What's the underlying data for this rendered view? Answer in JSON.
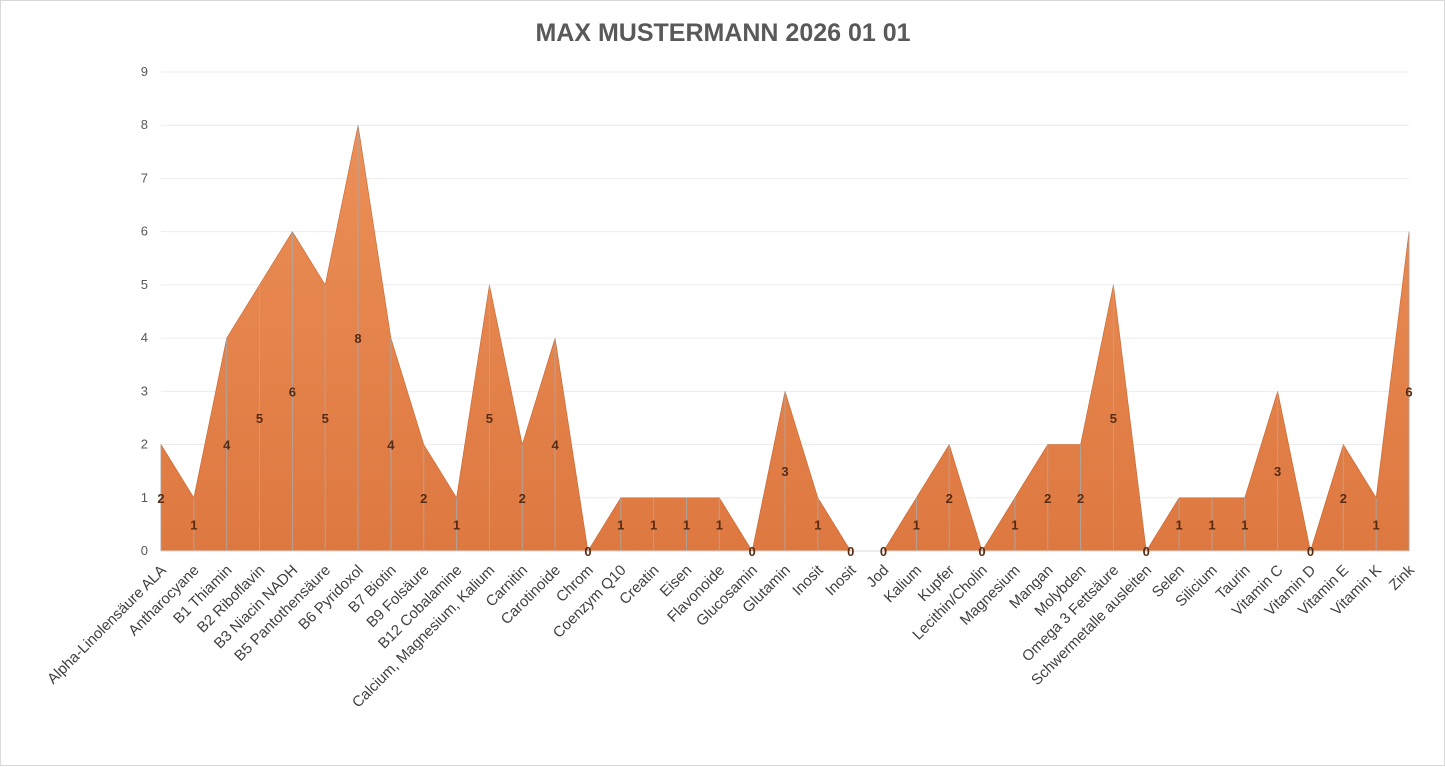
{
  "chart_data": {
    "type": "area",
    "title": "MAX MUSTERMANN 2026 01 01",
    "xlabel": "",
    "ylabel": "",
    "ylim": [
      0,
      9
    ],
    "yticks": [
      0,
      1,
      2,
      3,
      4,
      5,
      6,
      7,
      8,
      9
    ],
    "grid": true,
    "data_labels": true,
    "colors": {
      "fill": "#e07b45",
      "fill_light": "#ee9a68",
      "edge": "#c9652f",
      "label": "#5a2a10"
    },
    "categories": [
      "Alpha-Linolensäure ALA",
      "Antharocyane",
      "B1 Thiamin",
      "B2 Riboflavin",
      "B3 Niacin  NADH",
      "B5 Pantothensäure",
      "B6 Pyridoxol",
      "B7 Biotin",
      "B9 Folsäure",
      "B12 Cobalamine",
      "Calcium, Magnesium, Kalium",
      "Carnitin",
      "Carotinoide",
      "Chrom",
      "Coenzym Q10",
      "Creatin",
      "Eisen",
      "Flavonoide",
      "Glucosamin",
      "Glutamin",
      "Inosit",
      "Inosit",
      "Jod",
      "Kalium",
      "Kupfer",
      "Lecithin/Cholin",
      "Magnesium",
      "Mangan",
      "Molybden",
      "Omega 3 Fettsäure",
      "Schwermetalle ausleiten",
      "Selen",
      "Silicium",
      "Taurin",
      "Vitamin C",
      "Vitamin D",
      "Vitamin E",
      "Vitamin K",
      "Zink"
    ],
    "values": [
      2,
      1,
      4,
      5,
      6,
      5,
      8,
      4,
      2,
      1,
      5,
      2,
      4,
      0,
      1,
      1,
      1,
      1,
      0,
      3,
      1,
      0,
      0,
      1,
      2,
      0,
      1,
      2,
      2,
      5,
      0,
      1,
      1,
      1,
      3,
      0,
      2,
      1,
      6
    ]
  }
}
